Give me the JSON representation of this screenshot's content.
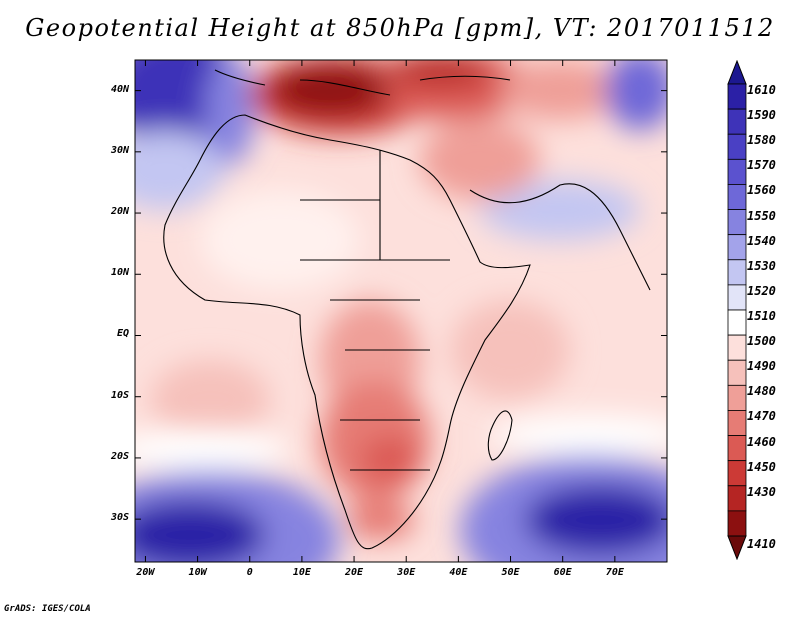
{
  "title": "Geopotential Height at 850hPa [gpm], VT: 2017011512",
  "credit": "GrADS: IGES/COLA",
  "map": {
    "lat_range": [
      -37,
      45
    ],
    "lon_range": [
      -22,
      80
    ],
    "lat_ticks": [
      {
        "value": 40,
        "label": "40N"
      },
      {
        "value": 30,
        "label": "30N"
      },
      {
        "value": 20,
        "label": "20N"
      },
      {
        "value": 10,
        "label": "10N"
      },
      {
        "value": 0,
        "label": "EQ"
      },
      {
        "value": -10,
        "label": "10S"
      },
      {
        "value": -20,
        "label": "20S"
      },
      {
        "value": -30,
        "label": "30S"
      }
    ],
    "lon_ticks": [
      {
        "value": -20,
        "label": "20W"
      },
      {
        "value": -10,
        "label": "10W"
      },
      {
        "value": 0,
        "label": "0"
      },
      {
        "value": 10,
        "label": "10E"
      },
      {
        "value": 20,
        "label": "20E"
      },
      {
        "value": 30,
        "label": "30E"
      },
      {
        "value": 40,
        "label": "40E"
      },
      {
        "value": 50,
        "label": "50E"
      },
      {
        "value": 60,
        "label": "60E"
      },
      {
        "value": 70,
        "label": "70E"
      }
    ]
  },
  "colorbar": {
    "labels": [
      "1610",
      "1590",
      "1580",
      "1570",
      "1560",
      "1550",
      "1540",
      "1530",
      "1520",
      "1510",
      "1500",
      "1490",
      "1480",
      "1470",
      "1460",
      "1450",
      "1430",
      "1410"
    ],
    "colors": [
      "#2b20a6",
      "#3e33b8",
      "#4a40c4",
      "#5b52cf",
      "#6e68d8",
      "#8683e0",
      "#a3a3ea",
      "#c3c6f2",
      "#e2e4f8",
      "#ffffff",
      "#fde0dc",
      "#f6c1bb",
      "#ef9f98",
      "#e67c75",
      "#db5a54",
      "#cc3a36",
      "#b52523",
      "#8c1010"
    ],
    "top_arrow_color": "#1c1890",
    "bottom_arrow_color": "#6a0a0a"
  },
  "coast_color": "#000000"
}
